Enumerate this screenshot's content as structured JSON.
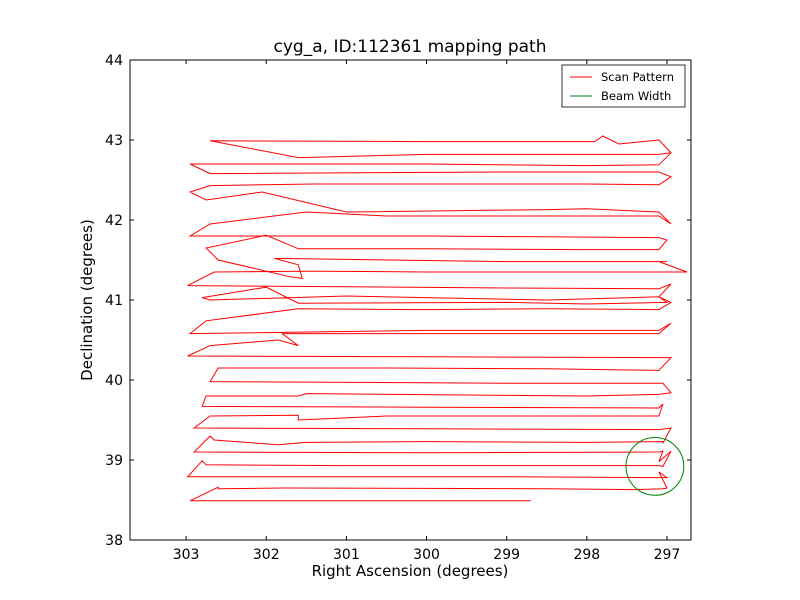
{
  "chart_data": {
    "type": "line",
    "title": "cyg_a, ID:112361 mapping path",
    "xlabel": "Right Ascension (degrees)",
    "ylabel": "Declination (degrees)",
    "xlim": [
      303.7,
      296.7
    ],
    "ylim": [
      38,
      44
    ],
    "x_ticks": [
      303,
      302,
      301,
      300,
      299,
      298,
      297
    ],
    "y_ticks": [
      38,
      39,
      40,
      41,
      42,
      43,
      44
    ],
    "x_tick_labels": [
      "303",
      "302",
      "301",
      "300",
      "299",
      "298",
      "297"
    ],
    "y_tick_labels": [
      "38",
      "39",
      "40",
      "41",
      "42",
      "43",
      "44"
    ],
    "grid": false,
    "legend": {
      "placement": "top-right",
      "entries": [
        {
          "label": "Scan Pattern",
          "color": "#ff0000"
        },
        {
          "label": "Beam Width",
          "color": "#008000"
        }
      ]
    },
    "series": [
      {
        "name": "Scan Pattern",
        "color": "#ff0000",
        "points": [
          [
            298.7,
            38.49
          ],
          [
            302.95,
            38.49
          ],
          [
            302.6,
            38.66
          ],
          [
            302.6,
            38.64
          ],
          [
            301.8,
            38.65
          ],
          [
            298.5,
            38.64
          ],
          [
            297.4,
            38.63
          ],
          [
            297.05,
            38.64
          ],
          [
            297.0,
            38.65
          ],
          [
            297.1,
            38.85
          ],
          [
            297.0,
            38.78
          ],
          [
            297.1,
            38.78
          ],
          [
            299.0,
            38.79
          ],
          [
            302.98,
            38.79
          ],
          [
            302.8,
            38.99
          ],
          [
            302.75,
            38.94
          ],
          [
            301.0,
            38.93
          ],
          [
            298.5,
            38.93
          ],
          [
            297.1,
            38.93
          ],
          [
            297.05,
            38.92
          ],
          [
            296.95,
            39.11
          ],
          [
            297.1,
            38.98
          ],
          [
            297.05,
            39.11
          ],
          [
            297.1,
            39.1
          ],
          [
            300.0,
            39.09
          ],
          [
            302.9,
            39.1
          ],
          [
            302.7,
            39.3
          ],
          [
            302.65,
            39.25
          ],
          [
            301.85,
            39.19
          ],
          [
            301.5,
            39.22
          ],
          [
            300.0,
            39.23
          ],
          [
            298.0,
            39.22
          ],
          [
            297.05,
            39.23
          ],
          [
            297.05,
            39.21
          ],
          [
            296.95,
            39.4
          ],
          [
            297.1,
            39.38
          ],
          [
            300.0,
            39.39
          ],
          [
            302.9,
            39.4
          ],
          [
            302.7,
            39.55
          ],
          [
            301.6,
            39.56
          ],
          [
            301.6,
            39.5
          ],
          [
            300.5,
            39.55
          ],
          [
            298.0,
            39.55
          ],
          [
            297.1,
            39.55
          ],
          [
            297.05,
            39.7
          ],
          [
            297.1,
            39.65
          ],
          [
            300.0,
            39.66
          ],
          [
            302.8,
            39.67
          ],
          [
            302.75,
            39.8
          ],
          [
            301.6,
            39.8
          ],
          [
            301.5,
            39.83
          ],
          [
            298.0,
            39.8
          ],
          [
            297.1,
            39.82
          ],
          [
            296.95,
            39.84
          ],
          [
            297.05,
            39.96
          ],
          [
            299.0,
            39.96
          ],
          [
            302.7,
            39.98
          ],
          [
            302.6,
            40.15
          ],
          [
            300.5,
            40.15
          ],
          [
            298.5,
            40.14
          ],
          [
            297.1,
            40.12
          ],
          [
            296.95,
            40.28
          ],
          [
            297.1,
            40.28
          ],
          [
            300.0,
            40.29
          ],
          [
            302.98,
            40.3
          ],
          [
            302.7,
            40.43
          ],
          [
            301.85,
            40.5
          ],
          [
            301.6,
            40.43
          ],
          [
            301.8,
            40.58
          ],
          [
            300.0,
            40.58
          ],
          [
            298.0,
            40.58
          ],
          [
            297.1,
            40.58
          ],
          [
            296.95,
            40.71
          ],
          [
            297.1,
            40.62
          ],
          [
            300.0,
            40.62
          ],
          [
            302.95,
            40.58
          ],
          [
            302.75,
            40.74
          ],
          [
            301.6,
            40.89
          ],
          [
            300.0,
            40.88
          ],
          [
            298.5,
            40.89
          ],
          [
            297.1,
            40.88
          ],
          [
            296.95,
            40.97
          ],
          [
            297.1,
            41.04
          ],
          [
            297.0,
            40.97
          ],
          [
            298.0,
            40.95
          ],
          [
            299.0,
            40.97
          ],
          [
            301.6,
            40.96
          ],
          [
            302.0,
            41.16
          ],
          [
            302.8,
            41.03
          ],
          [
            302.7,
            41.0
          ],
          [
            301.0,
            41.05
          ],
          [
            298.5,
            41.0
          ],
          [
            297.1,
            41.04
          ],
          [
            296.95,
            41.2
          ],
          [
            297.1,
            41.14
          ],
          [
            299.0,
            41.15
          ],
          [
            302.98,
            41.18
          ],
          [
            302.65,
            41.35
          ],
          [
            301.5,
            41.36
          ],
          [
            301.3,
            41.36
          ],
          [
            300.0,
            41.35
          ],
          [
            298.0,
            41.35
          ],
          [
            297.1,
            41.35
          ],
          [
            296.75,
            41.35
          ],
          [
            297.1,
            41.48
          ],
          [
            297.0,
            41.48
          ],
          [
            299.0,
            41.48
          ],
          [
            301.9,
            41.52
          ],
          [
            301.6,
            41.44
          ],
          [
            301.55,
            41.27
          ],
          [
            301.7,
            41.29
          ],
          [
            302.6,
            41.5
          ],
          [
            302.75,
            41.65
          ],
          [
            302.0,
            41.81
          ],
          [
            301.6,
            41.64
          ],
          [
            300.0,
            41.64
          ],
          [
            298.0,
            41.63
          ],
          [
            297.1,
            41.63
          ],
          [
            297.0,
            41.75
          ],
          [
            297.1,
            41.78
          ],
          [
            300.0,
            41.8
          ],
          [
            302.95,
            41.8
          ],
          [
            302.7,
            41.95
          ],
          [
            301.5,
            42.1
          ],
          [
            300.5,
            42.05
          ],
          [
            298.5,
            42.05
          ],
          [
            297.1,
            42.05
          ],
          [
            296.95,
            41.95
          ],
          [
            297.1,
            42.1
          ],
          [
            298.0,
            42.14
          ],
          [
            298.5,
            42.13
          ],
          [
            301.0,
            42.1
          ],
          [
            302.05,
            42.35
          ],
          [
            302.75,
            42.25
          ],
          [
            302.95,
            42.35
          ],
          [
            302.7,
            42.43
          ],
          [
            301.4,
            42.45
          ],
          [
            300.0,
            42.45
          ],
          [
            298.0,
            42.45
          ],
          [
            297.1,
            42.44
          ],
          [
            296.95,
            42.54
          ],
          [
            297.1,
            42.6
          ],
          [
            299.0,
            42.6
          ],
          [
            302.7,
            42.58
          ],
          [
            302.95,
            42.7
          ],
          [
            300.0,
            42.7
          ],
          [
            298.0,
            42.68
          ],
          [
            297.1,
            42.69
          ],
          [
            296.95,
            42.84
          ],
          [
            297.1,
            43.0
          ],
          [
            297.6,
            42.95
          ],
          [
            297.8,
            43.05
          ],
          [
            297.9,
            42.98
          ],
          [
            300.0,
            42.98
          ],
          [
            302.7,
            42.99
          ],
          [
            301.6,
            42.78
          ],
          [
            300.0,
            42.82
          ],
          [
            298.0,
            42.82
          ],
          [
            297.1,
            42.82
          ],
          [
            296.95,
            42.84
          ]
        ]
      },
      {
        "name": "Beam Width",
        "color": "#008000",
        "shape": "circle",
        "center": [
          297.15,
          38.92
        ],
        "radius": 0.36
      }
    ]
  }
}
